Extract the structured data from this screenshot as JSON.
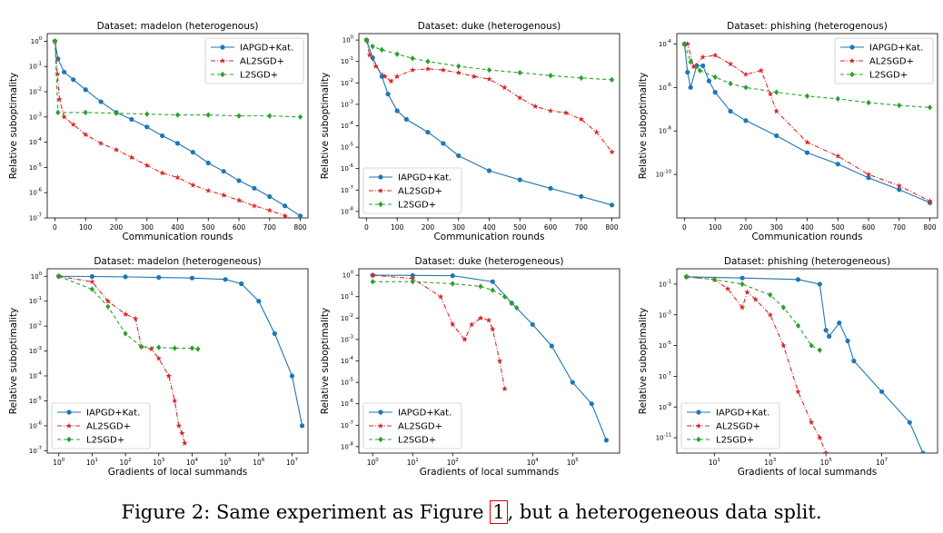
{
  "colors": {
    "IAPGD+Kat.": "#1f77b4",
    "AL2SGD+": "#d62728",
    "L2SGD+": "#2ca02c"
  },
  "caption": {
    "prefix": "Figure 2: Same experiment as Figure ",
    "ref": "1",
    "suffix": ", but a heterogeneous data split."
  },
  "chart_data": [
    {
      "type": "line",
      "title": "Dataset: madelon (heterogenous)",
      "xlabel": "Communication rounds",
      "ylabel": "Relative suboptimality",
      "xscale": "linear",
      "yscale": "log",
      "xlim": [
        -25,
        825
      ],
      "ylim": [
        1e-07,
        2
      ],
      "xticks": [
        0,
        100,
        200,
        300,
        400,
        500,
        600,
        700,
        800
      ],
      "yticks": [
        1,
        0.1,
        0.01,
        0.001,
        0.0001,
        1e-05,
        1e-06,
        1e-07
      ],
      "legend": "top-right",
      "series": [
        {
          "name": "IAPGD+Kat.",
          "x": [
            0,
            10,
            30,
            60,
            100,
            150,
            200,
            250,
            300,
            350,
            400,
            450,
            500,
            550,
            600,
            650,
            700,
            750,
            800
          ],
          "y": [
            1,
            0.2,
            0.06,
            0.03,
            0.012,
            0.004,
            0.0015,
            0.0008,
            0.0004,
            0.00018,
            9e-05,
            4e-05,
            1.5e-05,
            7e-06,
            3e-06,
            1.5e-06,
            7e-07,
            3e-07,
            1.2e-07
          ]
        },
        {
          "name": "AL2SGD+",
          "x": [
            0,
            8,
            15,
            30,
            60,
            100,
            150,
            200,
            250,
            300,
            350,
            400,
            450,
            500,
            550,
            600,
            650,
            700,
            750,
            800
          ],
          "y": [
            1,
            0.05,
            0.005,
            0.001,
            0.0005,
            0.0002,
            9e-05,
            5e-05,
            2.5e-05,
            1.2e-05,
            6e-06,
            4e-06,
            2e-06,
            1.2e-06,
            8e-07,
            5e-07,
            3e-07,
            2e-07,
            1.2e-07,
            7e-08
          ]
        },
        {
          "name": "L2SGD+",
          "x": [
            0,
            10,
            100,
            200,
            300,
            400,
            500,
            600,
            700,
            800
          ],
          "y": [
            1,
            0.0015,
            0.0015,
            0.0014,
            0.0013,
            0.0012,
            0.0012,
            0.0011,
            0.0011,
            0.001
          ]
        }
      ]
    },
    {
      "type": "line",
      "title": "Dataset: duke (heterogenous)",
      "xlabel": "Communication rounds",
      "ylabel": "Relative suboptimality",
      "xscale": "linear",
      "yscale": "log",
      "xlim": [
        -25,
        825
      ],
      "ylim": [
        5e-09,
        2
      ],
      "xticks": [
        0,
        100,
        200,
        300,
        400,
        500,
        600,
        700,
        800
      ],
      "yticks": [
        1,
        0.1,
        0.01,
        0.001,
        0.0001,
        1e-05,
        1e-06,
        1e-07,
        1e-08
      ],
      "legend": "bottom-left",
      "series": [
        {
          "name": "IAPGD+Kat.",
          "x": [
            0,
            20,
            50,
            70,
            100,
            130,
            200,
            250,
            300,
            400,
            500,
            600,
            700,
            800
          ],
          "y": [
            1,
            0.15,
            0.02,
            0.003,
            0.0005,
            0.0002,
            5e-05,
            1.5e-05,
            4e-06,
            8e-07,
            3e-07,
            1.2e-07,
            5e-08,
            2e-08
          ]
        },
        {
          "name": "AL2SGD+",
          "x": [
            0,
            10,
            30,
            60,
            80,
            100,
            150,
            200,
            250,
            300,
            350,
            400,
            450,
            500,
            550,
            600,
            650,
            700,
            750,
            800
          ],
          "y": [
            1,
            0.2,
            0.06,
            0.02,
            0.012,
            0.02,
            0.04,
            0.045,
            0.04,
            0.03,
            0.02,
            0.015,
            0.006,
            0.002,
            0.0008,
            0.0005,
            0.0004,
            0.0002,
            5e-05,
            6e-06
          ]
        },
        {
          "name": "L2SGD+",
          "x": [
            0,
            20,
            50,
            100,
            150,
            200,
            300,
            400,
            500,
            600,
            700,
            800
          ],
          "y": [
            1,
            0.5,
            0.35,
            0.22,
            0.14,
            0.1,
            0.06,
            0.04,
            0.03,
            0.022,
            0.017,
            0.014
          ]
        }
      ]
    },
    {
      "type": "line",
      "title": "Dataset: phishing (heterogenous)",
      "xlabel": "Communication rounds",
      "ylabel": "Relative suboptimality",
      "xscale": "linear",
      "yscale": "log",
      "xlim": [
        -25,
        825
      ],
      "ylim": [
        1e-12,
        0.0003
      ],
      "xticks": [
        0,
        100,
        200,
        300,
        400,
        500,
        600,
        700,
        800
      ],
      "yticks": [
        0.0001,
        1e-06,
        1e-08,
        1e-10
      ],
      "legend": "top-right",
      "series": [
        {
          "name": "IAPGD+Kat.",
          "x": [
            0,
            10,
            20,
            40,
            60,
            80,
            100,
            150,
            200,
            300,
            400,
            500,
            600,
            700,
            800
          ],
          "y": [
            0.0001,
            5e-06,
            1e-06,
            1e-05,
            1e-05,
            2e-06,
            6e-07,
            8e-08,
            3e-08,
            6e-09,
            1e-09,
            3e-10,
            7e-11,
            2e-11,
            5e-12
          ]
        },
        {
          "name": "AL2SGD+",
          "x": [
            0,
            10,
            30,
            60,
            100,
            150,
            200,
            250,
            280,
            300,
            400,
            500,
            600,
            700,
            800
          ],
          "y": [
            0.0001,
            0.0001,
            9e-06,
            2.5e-05,
            3e-05,
            1.2e-05,
            4e-06,
            6e-06,
            5e-07,
            8e-08,
            3e-09,
            7e-10,
            1e-10,
            3e-11,
            6e-12
          ]
        },
        {
          "name": "L2SGD+",
          "x": [
            0,
            20,
            50,
            100,
            150,
            200,
            300,
            400,
            500,
            600,
            700,
            800
          ],
          "y": [
            0.0001,
            1.5e-05,
            6e-06,
            3e-06,
            1.5e-06,
            1e-06,
            6e-07,
            4e-07,
            3e-07,
            2e-07,
            1.5e-07,
            1.2e-07
          ]
        }
      ]
    },
    {
      "type": "line",
      "title": "Dataset: madelon (heterogeneous)",
      "xlabel": "Gradients of local summands",
      "ylabel": "Relative suboptimality",
      "xscale": "log",
      "yscale": "log",
      "xlim": [
        0.45,
        30000000
      ],
      "ylim": [
        8e-08,
        2
      ],
      "xticks": [
        1,
        10,
        100,
        1000,
        10000,
        100000,
        1000000,
        10000000
      ],
      "yticks": [
        1,
        0.1,
        0.01,
        0.001,
        0.0001,
        1e-05,
        1e-06,
        1e-07
      ],
      "legend": "bottom-left",
      "series": [
        {
          "name": "IAPGD+Kat.",
          "x": [
            1,
            10,
            100,
            1000,
            10000,
            100000,
            300000,
            1000000,
            3000000,
            10000000,
            20000000
          ],
          "y": [
            1,
            0.98,
            0.95,
            0.9,
            0.85,
            0.75,
            0.5,
            0.1,
            0.005,
            0.0001,
            1e-06
          ]
        },
        {
          "name": "AL2SGD+",
          "x": [
            1,
            10,
            30,
            100,
            200,
            300,
            600,
            1000,
            2000,
            3000,
            4000,
            5000,
            6000
          ],
          "y": [
            1,
            0.6,
            0.1,
            0.03,
            0.02,
            0.0015,
            0.0012,
            0.0005,
            0.0001,
            1e-05,
            1e-06,
            5e-07,
            2e-07
          ]
        },
        {
          "name": "L2SGD+",
          "x": [
            1,
            10,
            30,
            100,
            300,
            1000,
            3000,
            10000,
            15000
          ],
          "y": [
            1,
            0.3,
            0.06,
            0.005,
            0.0015,
            0.0014,
            0.0013,
            0.0013,
            0.0012
          ]
        }
      ]
    },
    {
      "type": "line",
      "title": "Dataset: duke (heterogeneous)",
      "xlabel": "Gradients of local summands",
      "ylabel": "Relative suboptimality",
      "xscale": "log",
      "yscale": "log",
      "xlim": [
        0.45,
        1500000
      ],
      "ylim": [
        5e-09,
        2
      ],
      "xticks": [
        1,
        10,
        100,
        10000,
        100000
      ],
      "yticks": [
        1,
        0.1,
        0.01,
        0.001,
        0.0001,
        1e-05,
        1e-06,
        1e-07,
        1e-08
      ],
      "legend": "bottom-left",
      "series": [
        {
          "name": "IAPGD+Kat.",
          "x": [
            1,
            10,
            100,
            1000,
            3000,
            10000,
            30000,
            100000,
            300000,
            700000
          ],
          "y": [
            1,
            0.98,
            0.95,
            0.5,
            0.05,
            0.005,
            0.0005,
            1e-05,
            1e-06,
            2e-08
          ]
        },
        {
          "name": "AL2SGD+",
          "x": [
            1,
            10,
            50,
            100,
            200,
            300,
            500,
            800,
            1000,
            1500,
            2000
          ],
          "y": [
            1,
            0.7,
            0.1,
            0.005,
            0.001,
            0.005,
            0.01,
            0.008,
            0.003,
            0.0001,
            5e-06
          ]
        },
        {
          "name": "L2SGD+",
          "x": [
            1,
            10,
            100,
            500,
            1000,
            2000,
            3000,
            4000
          ],
          "y": [
            0.5,
            0.5,
            0.4,
            0.3,
            0.2,
            0.1,
            0.05,
            0.03
          ]
        }
      ]
    },
    {
      "type": "line",
      "title": "Dataset: phishing (heterogeneous)",
      "xlabel": "Gradients of local summands",
      "ylabel": "Relative suboptimality",
      "xscale": "log",
      "yscale": "log",
      "xlim": [
        0.45,
        1000000000.0
      ],
      "ylim": [
        1e-12,
        1
      ],
      "xticks": [
        10,
        1000,
        100000,
        10000000
      ],
      "yticks": [
        0.1,
        0.001,
        1e-05,
        1e-07,
        1e-09,
        1e-11
      ],
      "legend": "bottom-left",
      "series": [
        {
          "name": "IAPGD+Kat.",
          "x": [
            1,
            100,
            10000,
            60000,
            100000,
            130000,
            300000,
            600000,
            1000000,
            10000000,
            100000000,
            300000000
          ],
          "y": [
            0.3,
            0.25,
            0.2,
            0.1,
            0.0001,
            4e-05,
            0.0003,
            2e-05,
            1e-06,
            1e-08,
            1e-10,
            1e-12
          ]
        },
        {
          "name": "AL2SGD+",
          "x": [
            1,
            10,
            30,
            100,
            150,
            300,
            1000,
            3000,
            10000,
            30000,
            60000,
            100000
          ],
          "y": [
            0.3,
            0.2,
            0.05,
            0.003,
            0.03,
            0.01,
            0.001,
            1e-05,
            1e-08,
            1e-10,
            1e-11,
            1e-12
          ]
        },
        {
          "name": "L2SGD+",
          "x": [
            1,
            10,
            100,
            1000,
            3000,
            10000,
            30000,
            60000
          ],
          "y": [
            0.3,
            0.2,
            0.1,
            0.02,
            0.003,
            0.0002,
            1e-05,
            5e-06
          ]
        }
      ]
    }
  ]
}
